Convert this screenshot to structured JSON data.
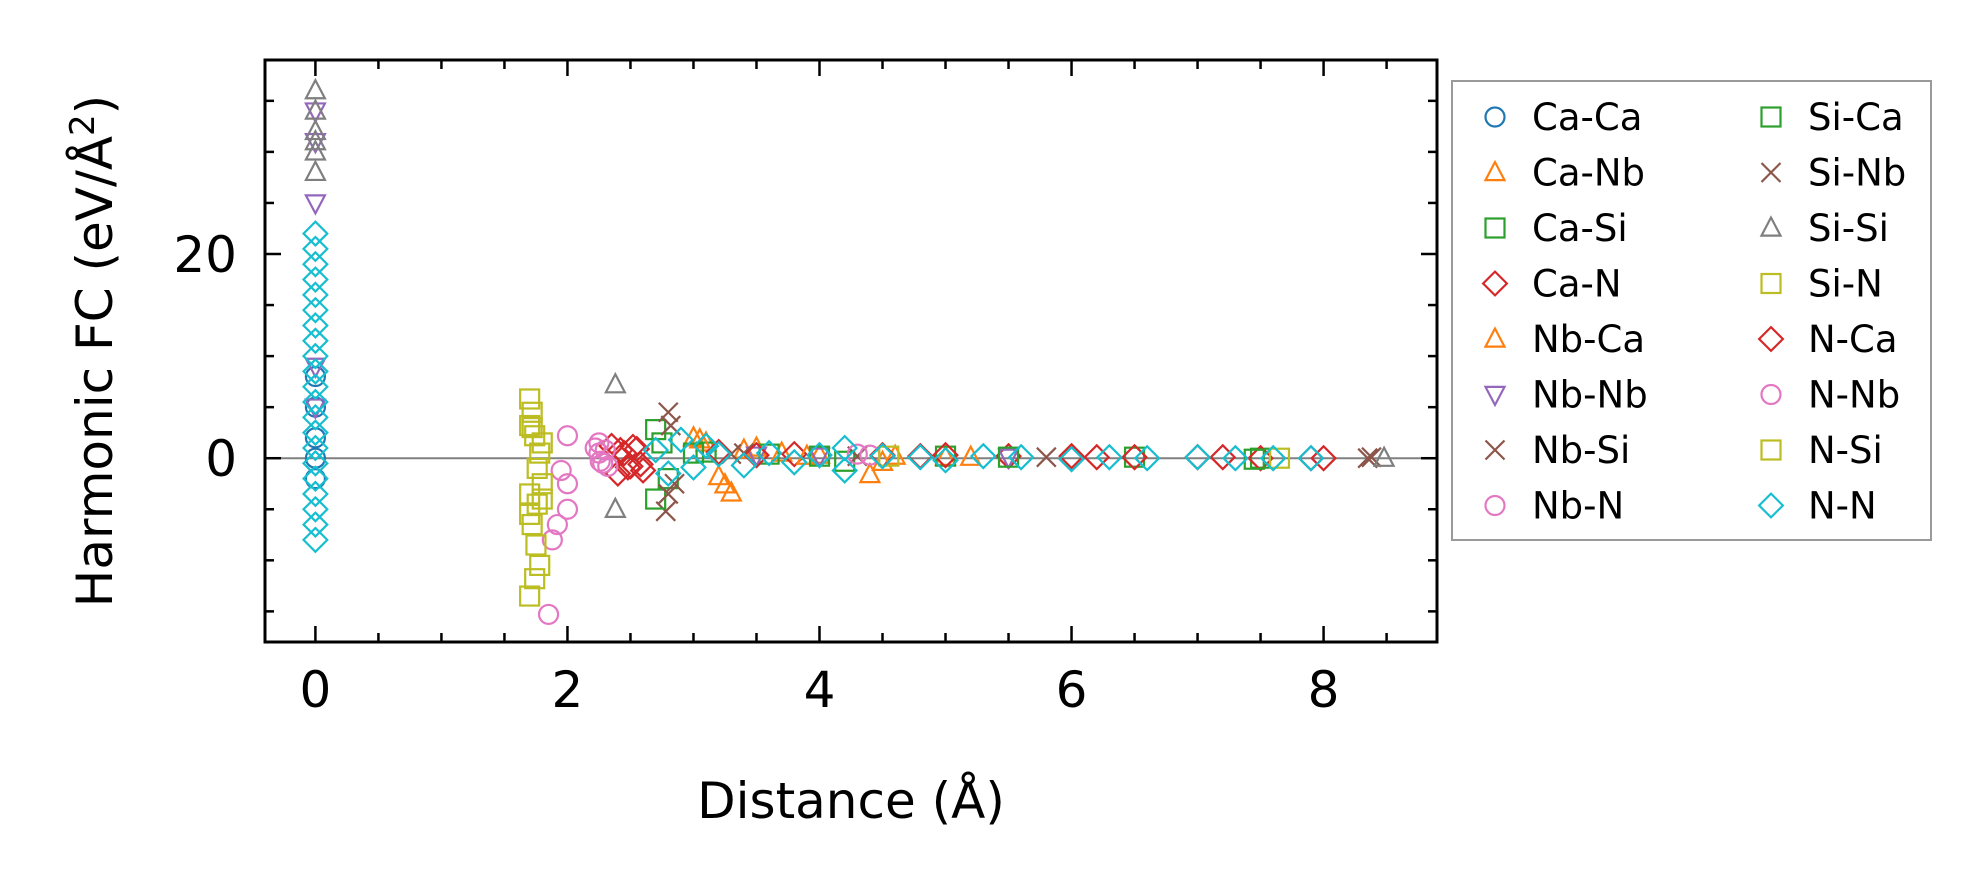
{
  "chart_data": {
    "type": "scatter",
    "title": "",
    "xlabel": "Distance (Å)",
    "ylabel": "Harmonic FC (eV/Å²)",
    "ylabel_parts": {
      "base": "Harmonic FC (eV/Å",
      "sup": "2",
      "close": ")"
    },
    "xlim": [
      -0.4,
      8.9
    ],
    "ylim": [
      -18,
      39
    ],
    "xticks": [
      0,
      2,
      4,
      6,
      8
    ],
    "xtick_labels": [
      "0",
      "2",
      "4",
      "6",
      "8"
    ],
    "yticks": [
      0,
      20
    ],
    "ytick_labels": [
      "0",
      "20"
    ],
    "minor_x_step": 0.5,
    "minor_y_step": 5,
    "reference_line_y": 0,
    "grid": false,
    "legend_position": "outside-right",
    "legend_columns": 2,
    "series": [
      {
        "name": "Ca-Ca",
        "marker": "circle",
        "color": "#1f77b4",
        "points": [
          [
            0,
            2
          ],
          [
            0,
            5
          ],
          [
            0,
            8
          ],
          [
            0,
            -2
          ],
          [
            0,
            0
          ]
        ]
      },
      {
        "name": "Ca-Nb",
        "marker": "triangle-up",
        "color": "#ff7f0e",
        "points": [
          [
            3.0,
            2.0
          ],
          [
            3.1,
            1.5
          ],
          [
            3.3,
            -3.4
          ],
          [
            3.2,
            -1.8
          ],
          [
            3.5,
            1.0
          ],
          [
            3.7,
            0.5
          ],
          [
            4.0,
            0.3
          ],
          [
            4.4,
            -1.6
          ],
          [
            4.6,
            0.2
          ],
          [
            5.0,
            0.1
          ]
        ]
      },
      {
        "name": "Ca-Si",
        "marker": "square",
        "color": "#2ca02c",
        "points": [
          [
            2.7,
            2.8
          ],
          [
            2.75,
            1.5
          ],
          [
            2.8,
            -2.0
          ],
          [
            3.1,
            0.6
          ],
          [
            3.6,
            0.4
          ],
          [
            4.2,
            -0.3
          ],
          [
            5.0,
            0.2
          ],
          [
            6.5,
            0.1
          ],
          [
            7.5,
            0.0
          ]
        ]
      },
      {
        "name": "Ca-N",
        "marker": "diamond",
        "color": "#d62728",
        "points": [
          [
            2.35,
            1.2
          ],
          [
            2.4,
            -1.5
          ],
          [
            2.45,
            0.5
          ],
          [
            2.5,
            -0.8
          ],
          [
            2.55,
            0.9
          ],
          [
            2.6,
            -1.2
          ],
          [
            3.2,
            0.6
          ],
          [
            3.8,
            0.4
          ],
          [
            4.5,
            0.3
          ],
          [
            5.0,
            0.3
          ],
          [
            5.5,
            0.2
          ],
          [
            6.0,
            0.2
          ],
          [
            6.5,
            0.1
          ],
          [
            7.0,
            0.1
          ],
          [
            7.5,
            0.0
          ],
          [
            8.0,
            0.0
          ]
        ]
      },
      {
        "name": "Nb-Ca",
        "marker": "triangle-up",
        "color": "#ff7f0e",
        "points": [
          [
            3.05,
            1.8
          ],
          [
            3.25,
            -2.6
          ],
          [
            3.4,
            0.8
          ],
          [
            3.9,
            0.2
          ],
          [
            4.5,
            -0.4
          ],
          [
            5.2,
            0.1
          ]
        ]
      },
      {
        "name": "Nb-Nb",
        "marker": "triangle-down",
        "color": "#9467bd",
        "points": [
          [
            0,
            25
          ],
          [
            0,
            31
          ],
          [
            0,
            34
          ],
          [
            0,
            5
          ],
          [
            0,
            9
          ],
          [
            3.5,
            0.3
          ],
          [
            4.0,
            0.2
          ],
          [
            5.5,
            0.1
          ]
        ]
      },
      {
        "name": "Nb-Si",
        "marker": "x",
        "color": "#8c564b",
        "points": [
          [
            2.8,
            4.5
          ],
          [
            2.82,
            3.2
          ],
          [
            2.78,
            -5.2
          ],
          [
            2.85,
            -2.5
          ],
          [
            3.4,
            0.5
          ],
          [
            4.3,
            0.2
          ],
          [
            5.8,
            0.1
          ],
          [
            8.35,
            0.0
          ]
        ]
      },
      {
        "name": "Nb-N",
        "marker": "circle",
        "color": "#e377c2",
        "points": [
          [
            1.88,
            -8.0
          ],
          [
            1.92,
            -6.5
          ],
          [
            1.95,
            -1.2
          ],
          [
            1.85,
            -15.3
          ],
          [
            2.0,
            2.2
          ],
          [
            2.0,
            -5.0
          ],
          [
            2.0,
            -2.5
          ],
          [
            2.25,
            1.5
          ],
          [
            2.25,
            0.5
          ],
          [
            2.28,
            -0.5
          ],
          [
            4.4,
            0.3
          ]
        ]
      },
      {
        "name": "Si-Ca",
        "marker": "square",
        "color": "#2ca02c",
        "points": [
          [
            2.7,
            -4.0
          ],
          [
            3.0,
            0.5
          ],
          [
            4.0,
            0.2
          ],
          [
            5.5,
            0.1
          ],
          [
            7.45,
            -0.1
          ]
        ]
      },
      {
        "name": "Si-Nb",
        "marker": "x",
        "color": "#8c564b",
        "points": [
          [
            2.8,
            -3.5
          ],
          [
            3.3,
            0.4
          ],
          [
            8.38,
            0.1
          ]
        ]
      },
      {
        "name": "Si-Si",
        "marker": "triangle-up",
        "color": "#7f7f7f",
        "points": [
          [
            0,
            36
          ],
          [
            0,
            34
          ],
          [
            0,
            32
          ],
          [
            0,
            31
          ],
          [
            0,
            30
          ],
          [
            0,
            28
          ],
          [
            2.38,
            7.2
          ],
          [
            2.38,
            -5.0
          ],
          [
            8.48,
            0.0
          ]
        ]
      },
      {
        "name": "Si-N",
        "marker": "square",
        "color": "#bcbd22",
        "points": [
          [
            1.7,
            5.8
          ],
          [
            1.72,
            4.5
          ],
          [
            1.7,
            3.2
          ],
          [
            1.74,
            2.2
          ],
          [
            1.7,
            -3.5
          ],
          [
            1.7,
            -5.5
          ],
          [
            1.72,
            -6.5
          ],
          [
            1.75,
            -8.5
          ],
          [
            1.78,
            -10.5
          ],
          [
            1.74,
            -11.8
          ],
          [
            1.7,
            -13.5
          ],
          [
            1.76,
            -1.0
          ],
          [
            1.78,
            0.5
          ],
          [
            1.8,
            -2.5
          ],
          [
            1.8,
            -4.0
          ]
        ]
      },
      {
        "name": "N-Ca",
        "marker": "diamond",
        "color": "#d62728",
        "points": [
          [
            2.42,
            0.8
          ],
          [
            2.48,
            -0.9
          ],
          [
            2.52,
            1.1
          ],
          [
            2.58,
            -0.6
          ],
          [
            3.5,
            0.3
          ],
          [
            4.8,
            0.2
          ],
          [
            6.2,
            0.1
          ],
          [
            7.2,
            0.1
          ],
          [
            7.9,
            0.0
          ]
        ]
      },
      {
        "name": "N-Nb",
        "marker": "circle",
        "color": "#e377c2",
        "points": [
          [
            2.22,
            1.0
          ],
          [
            2.26,
            -0.3
          ],
          [
            2.3,
            0.8
          ],
          [
            2.32,
            -0.8
          ],
          [
            4.3,
            0.4
          ]
        ]
      },
      {
        "name": "N-Si",
        "marker": "square",
        "color": "#bcbd22",
        "points": [
          [
            1.72,
            3.0
          ],
          [
            1.76,
            -4.5
          ],
          [
            1.8,
            1.5
          ],
          [
            4.55,
            0.2
          ],
          [
            7.65,
            0.0
          ]
        ]
      },
      {
        "name": "N-N",
        "marker": "diamond",
        "color": "#17becf",
        "points": [
          [
            0,
            22
          ],
          [
            0,
            20.5
          ],
          [
            0,
            19
          ],
          [
            0,
            17.5
          ],
          [
            0,
            16
          ],
          [
            0,
            14.5
          ],
          [
            0,
            13
          ],
          [
            0,
            11.5
          ],
          [
            0,
            10
          ],
          [
            0,
            8.5
          ],
          [
            0,
            7
          ],
          [
            0,
            5.5
          ],
          [
            0,
            4
          ],
          [
            0,
            2.5
          ],
          [
            0,
            1
          ],
          [
            0,
            -0.5
          ],
          [
            0,
            -2
          ],
          [
            0,
            -3.5
          ],
          [
            0,
            -5
          ],
          [
            0,
            -6.5
          ],
          [
            0,
            -8
          ],
          [
            2.7,
            0.8
          ],
          [
            2.8,
            -1.5
          ],
          [
            2.9,
            1.8
          ],
          [
            3.0,
            -0.9
          ],
          [
            3.1,
            1.2
          ],
          [
            3.2,
            0.4
          ],
          [
            3.4,
            -0.7
          ],
          [
            3.6,
            0.5
          ],
          [
            3.8,
            -0.4
          ],
          [
            4.0,
            0.3
          ],
          [
            4.2,
            1.0
          ],
          [
            4.2,
            -1.2
          ],
          [
            4.5,
            0.2
          ],
          [
            4.8,
            0.1
          ],
          [
            5.0,
            -0.2
          ],
          [
            5.3,
            0.2
          ],
          [
            5.6,
            0.1
          ],
          [
            6.0,
            -0.1
          ],
          [
            6.3,
            0.1
          ],
          [
            6.6,
            0.0
          ],
          [
            7.0,
            0.1
          ],
          [
            7.3,
            0.0
          ],
          [
            7.6,
            0.0
          ],
          [
            7.9,
            0.0
          ]
        ]
      }
    ]
  }
}
